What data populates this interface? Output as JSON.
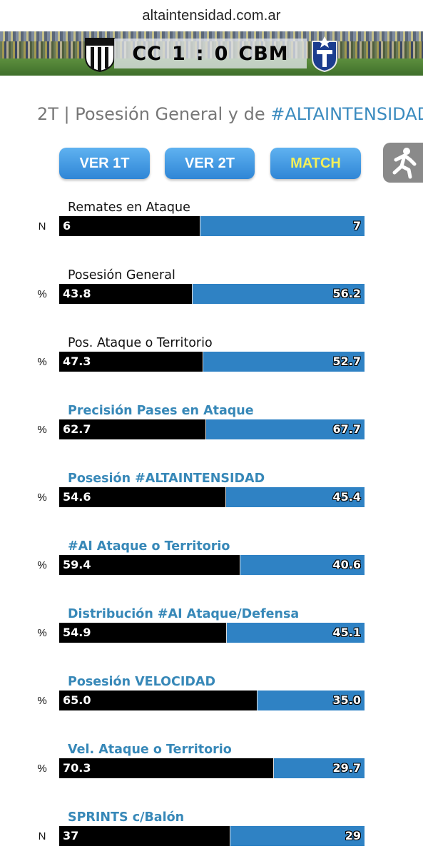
{
  "url": "altaintensidad.com.ar",
  "banner": {
    "home_abbr": "CC",
    "home_goals": "1",
    "separator": ":",
    "away_goals": "0",
    "away_abbr": "CBM"
  },
  "page_title": {
    "prefix": "2T | Posesión General y de ",
    "hashtag": "#ALTAINTENSIDAD"
  },
  "buttons": {
    "first_half": "VER 1T",
    "second_half": "VER 2T",
    "match": "MATCH"
  },
  "colors": {
    "home_bar": "#000000",
    "away_bar": "#2f82c4",
    "accent_blue_label": "#3788b8",
    "button_blue": "#3a8fdc",
    "match_text": "#f4f05a"
  },
  "stats": [
    {
      "label": "Remates en Ataque",
      "unit": "N",
      "home": "6",
      "away": "7",
      "home_share": 0.462,
      "highlight": false
    },
    {
      "label": "Posesión General",
      "unit": "%",
      "home": "43.8",
      "away": "56.2",
      "home_share": 0.438,
      "highlight": false
    },
    {
      "label": "Pos. Ataque o Territorio",
      "unit": "%",
      "home": "47.3",
      "away": "52.7",
      "home_share": 0.473,
      "highlight": false
    },
    {
      "label": "Precisión Pases en Ataque",
      "unit": "%",
      "home": "62.7",
      "away": "67.7",
      "home_share": 0.481,
      "highlight": true
    },
    {
      "label": "Posesión #ALTAINTENSIDAD",
      "unit": "%",
      "home": "54.6",
      "away": "45.4",
      "home_share": 0.546,
      "highlight": true
    },
    {
      "label": "#AI Ataque o Territorio",
      "unit": "%",
      "home": "59.4",
      "away": "40.6",
      "home_share": 0.594,
      "highlight": true
    },
    {
      "label": "Distribución #AI Ataque/Defensa",
      "unit": "%",
      "home": "54.9",
      "away": "45.1",
      "home_share": 0.549,
      "highlight": true
    },
    {
      "label": "Posesión VELOCIDAD",
      "unit": "%",
      "home": "65.0",
      "away": "35.0",
      "home_share": 0.65,
      "highlight": true
    },
    {
      "label": "Vel. Ataque o Territorio",
      "unit": "%",
      "home": "70.3",
      "away": "29.7",
      "home_share": 0.703,
      "highlight": true
    },
    {
      "label": "SPRINTS c/Balón",
      "unit": "N",
      "home": "37",
      "away": "29",
      "home_share": 0.561,
      "highlight": true
    }
  ]
}
